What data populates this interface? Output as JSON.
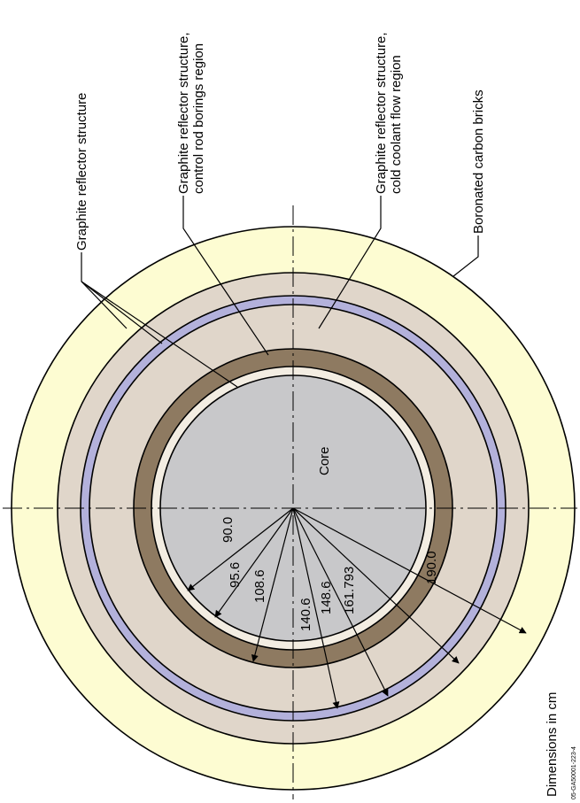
{
  "diagram": {
    "labels": {
      "graphite_reflector": "Graphite reflector structure",
      "control_rod_line1": "Graphite reflector structure,",
      "control_rod_line2": "control rod borings region",
      "cold_coolant_line1": "Graphite reflector structure,",
      "cold_coolant_line2": "cold coolant flow region",
      "boronated": "Boronated carbon bricks",
      "core": "Core",
      "dimensions_note": "Dimensions in  cm",
      "figure_code": "05-GA50001-223-4"
    },
    "radii_cm": [
      "90.0",
      "95.6",
      "108.6",
      "140.6",
      "148.6",
      "161.793",
      "190.0"
    ],
    "colors": {
      "core": "#c8c8ca",
      "reflector": "#e0d6ca",
      "control_rod_region": "#8e7a61",
      "cold_coolant_region": "#b3b1db",
      "boronated_carbon": "#fdfcd2",
      "gap": "#f3ede2"
    }
  }
}
